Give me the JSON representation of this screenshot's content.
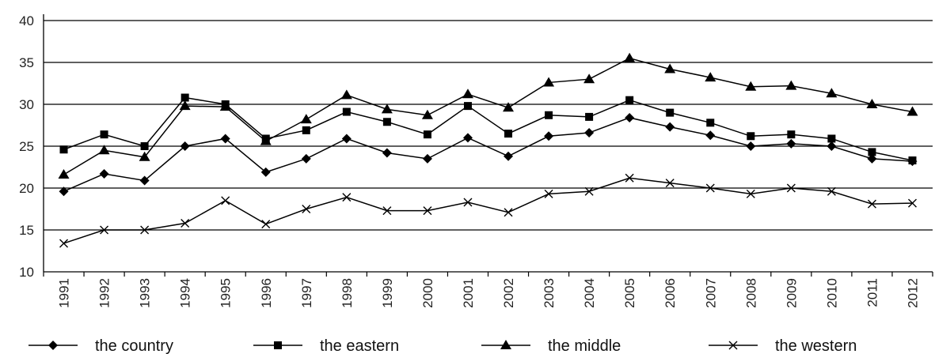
{
  "chart_data": {
    "type": "line",
    "title": "",
    "xlabel": "",
    "ylabel": "",
    "ylim": [
      10,
      40
    ],
    "yticks": [
      10,
      15,
      20,
      25,
      30,
      35,
      40
    ],
    "grid": "horizontal",
    "legend_position": "bottom",
    "categories": [
      "1991",
      "1992",
      "1993",
      "1994",
      "1995",
      "1996",
      "1997",
      "1998",
      "1999",
      "2000",
      "2001",
      "2002",
      "2003",
      "2004",
      "2005",
      "2006",
      "2007",
      "2008",
      "2009",
      "2010",
      "2011",
      "2012"
    ],
    "series": [
      {
        "name": "the country",
        "marker": "diamond",
        "values": [
          19.6,
          21.7,
          20.9,
          25.0,
          25.9,
          21.9,
          23.5,
          25.9,
          24.2,
          23.5,
          26.0,
          23.8,
          26.2,
          26.6,
          28.4,
          27.3,
          26.3,
          25.0,
          25.3,
          25.0,
          23.5,
          23.2
        ]
      },
      {
        "name": "the eastern",
        "marker": "square",
        "values": [
          24.6,
          26.4,
          25.0,
          30.8,
          30.0,
          25.9,
          26.9,
          29.1,
          27.9,
          26.4,
          29.8,
          26.5,
          28.7,
          28.5,
          30.5,
          29.0,
          27.8,
          26.2,
          26.4,
          25.9,
          24.3,
          23.3
        ]
      },
      {
        "name": "the middle",
        "marker": "triangle",
        "values": [
          21.6,
          24.5,
          23.7,
          29.8,
          29.7,
          25.6,
          28.2,
          31.1,
          29.4,
          28.7,
          31.2,
          29.6,
          32.6,
          33.0,
          35.5,
          34.2,
          33.2,
          32.1,
          32.2,
          31.3,
          30.0,
          29.1
        ]
      },
      {
        "name": "the western",
        "marker": "cross",
        "values": [
          13.4,
          15.0,
          15.0,
          15.8,
          18.5,
          15.7,
          17.5,
          18.9,
          17.3,
          17.3,
          18.3,
          17.1,
          19.3,
          19.6,
          21.2,
          20.6,
          20.0,
          19.3,
          20.0,
          19.6,
          18.1,
          18.2
        ]
      }
    ]
  }
}
